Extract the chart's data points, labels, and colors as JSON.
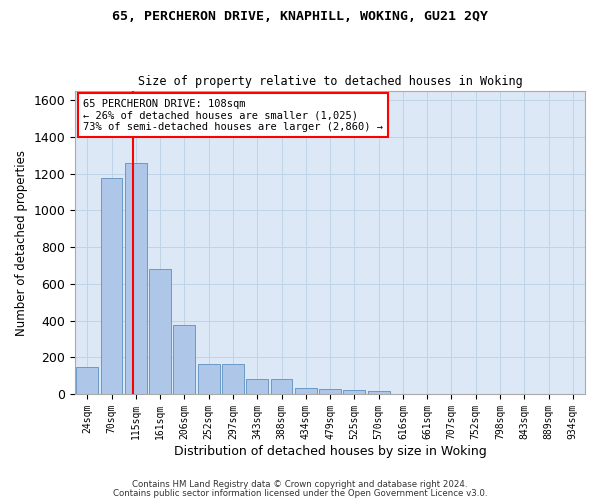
{
  "title1": "65, PERCHERON DRIVE, KNAPHILL, WOKING, GU21 2QY",
  "title2": "Size of property relative to detached houses in Woking",
  "xlabel": "Distribution of detached houses by size in Woking",
  "ylabel": "Number of detached properties",
  "categories": [
    "24sqm",
    "70sqm",
    "115sqm",
    "161sqm",
    "206sqm",
    "252sqm",
    "297sqm",
    "343sqm",
    "388sqm",
    "434sqm",
    "479sqm",
    "525sqm",
    "570sqm",
    "616sqm",
    "661sqm",
    "707sqm",
    "752sqm",
    "798sqm",
    "843sqm",
    "889sqm",
    "934sqm"
  ],
  "values": [
    145,
    1175,
    1260,
    680,
    375,
    165,
    165,
    80,
    80,
    35,
    25,
    22,
    15,
    0,
    0,
    0,
    0,
    0,
    0,
    0,
    0
  ],
  "bar_color": "#aec6e8",
  "bar_edge_color": "#5b90c0",
  "grid_color": "#c0d4e8",
  "background_color": "#dce8f5",
  "vline_x": 1.87,
  "vline_color": "red",
  "annotation_text": "65 PERCHERON DRIVE: 108sqm\n← 26% of detached houses are smaller (1,025)\n73% of semi-detached houses are larger (2,860) →",
  "annotation_box_color": "white",
  "annotation_box_edge": "red",
  "ylim": [
    0,
    1650
  ],
  "footer1": "Contains HM Land Registry data © Crown copyright and database right 2024.",
  "footer2": "Contains public sector information licensed under the Open Government Licence v3.0."
}
